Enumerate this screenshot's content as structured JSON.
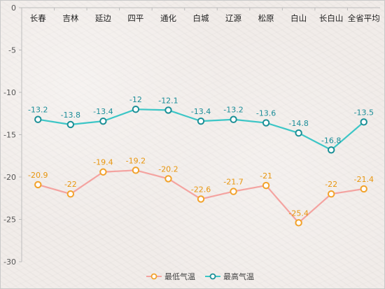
{
  "chart_data": {
    "type": "line",
    "title": "",
    "xlabel": "",
    "ylabel": "",
    "categories": [
      "长春",
      "吉林",
      "延边",
      "四平",
      "通化",
      "白城",
      "辽源",
      "松原",
      "白山",
      "长白山",
      "全省平均"
    ],
    "y_ticks": [
      "0",
      "-5",
      "-10",
      "-15",
      "-20",
      "-25",
      "-30"
    ],
    "ylim": [
      -30,
      0
    ],
    "x_axis_position": "top",
    "grid": false,
    "legend_position": "bottom",
    "series": [
      {
        "name": "最低气温",
        "color": "#f4a3a0",
        "marker_color": "#f2a22a",
        "label_color": "#e8960f",
        "values": [
          -20.9,
          -22,
          -19.4,
          -19.2,
          -20.2,
          -22.6,
          -21.7,
          -21,
          -25.4,
          -22,
          -21.4
        ],
        "labels": [
          "-20.9",
          "-22",
          "-19.4",
          "-19.2",
          "-20.2",
          "-22.6",
          "-21.7",
          "-21",
          "-25.4",
          "-22",
          "-21.4"
        ]
      },
      {
        "name": "最高气温",
        "color": "#3cc6c6",
        "marker_color": "#1a8f96",
        "label_color": "#1b8d98",
        "values": [
          -13.2,
          -13.8,
          -13.4,
          -12,
          -12.1,
          -13.4,
          -13.2,
          -13.6,
          -14.8,
          -16.8,
          -13.5
        ],
        "labels": [
          "-13.2",
          "-13.8",
          "-13.4",
          "-12",
          "-12.1",
          "-13.4",
          "-13.2",
          "-13.6",
          "-14.8",
          "-16.8",
          "-13.5"
        ]
      }
    ]
  }
}
